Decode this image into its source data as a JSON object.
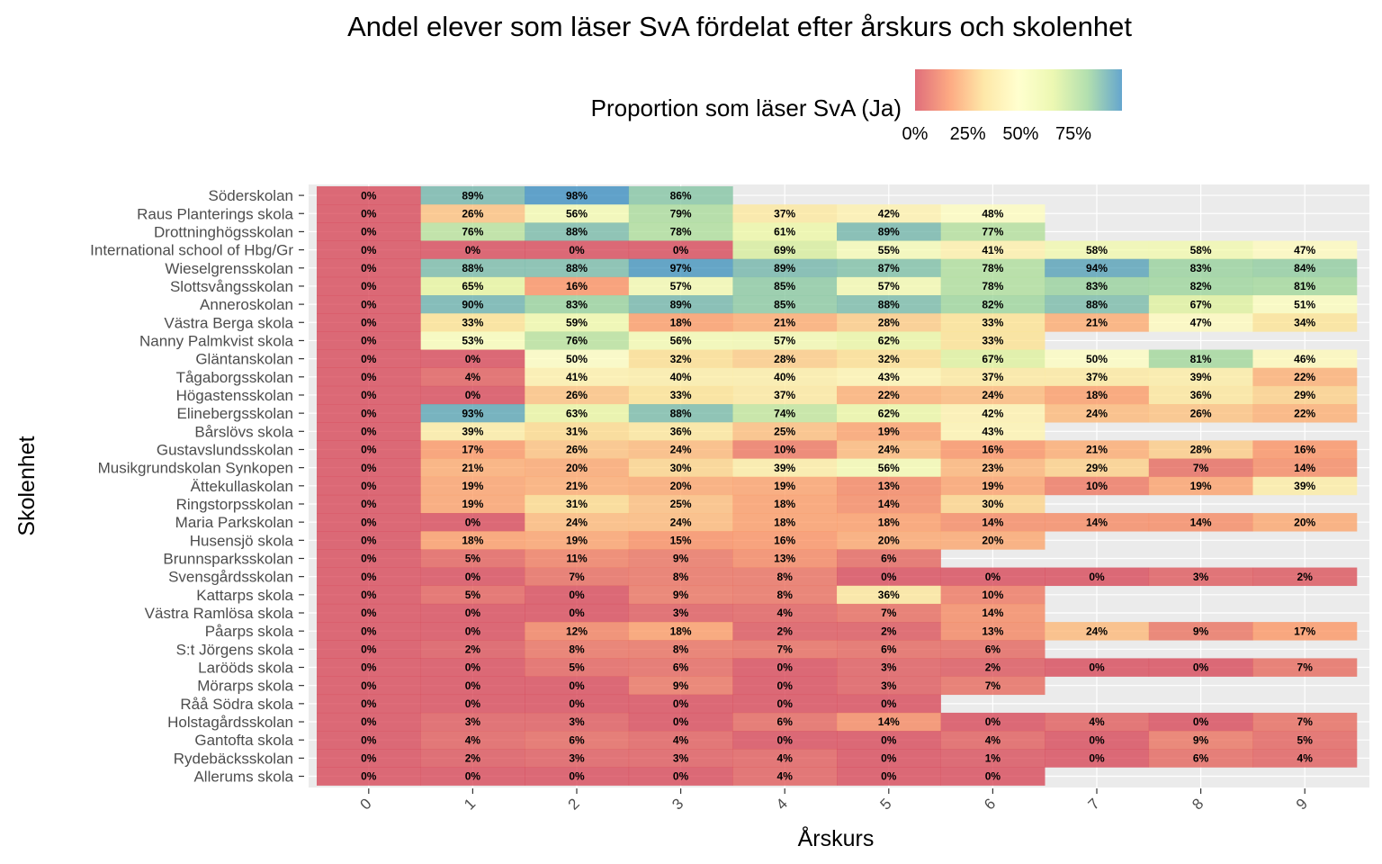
{
  "chart_data": {
    "type": "heatmap",
    "title": "Andel elever som läser SvA fördelat efter årskurs och skolenhet",
    "xlabel": "Årskurs",
    "ylabel": "Skolenhet",
    "legend": {
      "title": "Proportion som läser SvA (Ja)",
      "position": "top",
      "ticks": [
        "0%",
        "25%",
        "50%",
        "75%"
      ],
      "tick_values": [
        0,
        25,
        50,
        75
      ],
      "range": [
        0,
        98
      ],
      "colors": [
        "#d53e4f",
        "#fc8d59",
        "#fee08b",
        "#ffffbf",
        "#e6f598",
        "#99d594",
        "#3288bd"
      ]
    },
    "grid": true,
    "x": [
      "0",
      "1",
      "2",
      "3",
      "4",
      "5",
      "6",
      "7",
      "8",
      "9"
    ],
    "y": [
      "Söderskolan",
      "Raus Planterings skola",
      "Drottninghögsskolan",
      "International school of Hbg/Gr",
      "Wieselgrensskolan",
      "Slottsvångsskolan",
      "Anneroskolan",
      "Västra Berga skola",
      "Nanny Palmkvist skola",
      "Gläntanskolan",
      "Tågaborgsskolan",
      "Högastensskolan",
      "Elinebergsskolan",
      "Bårslövs skola",
      "Gustavslundsskolan",
      "Musikgrundskolan Synkopen",
      "Ättekullaskolan",
      "Ringstorpsskolan",
      "Maria Parkskolan",
      "Husensjö skola",
      "Brunnsparksskolan",
      "Svensgårdsskolan",
      "Kattarps skola",
      "Västra Ramlösa skola",
      "Påarps skola",
      "S:t Jörgens skola",
      "Larööds skola",
      "Mörarps skola",
      "Råå Södra skola",
      "Holstagårdsskolan",
      "Gantofta skola",
      "Rydebäcksskolan",
      "Allerums skola"
    ],
    "values": [
      [
        0,
        89,
        98,
        86,
        null,
        null,
        null,
        null,
        null,
        null
      ],
      [
        0,
        26,
        56,
        79,
        37,
        42,
        48,
        null,
        null,
        null
      ],
      [
        0,
        76,
        88,
        78,
        61,
        89,
        77,
        null,
        null,
        null
      ],
      [
        0,
        0,
        0,
        0,
        69,
        55,
        41,
        58,
        58,
        47
      ],
      [
        0,
        88,
        88,
        97,
        89,
        87,
        78,
        94,
        83,
        84
      ],
      [
        0,
        65,
        16,
        57,
        85,
        57,
        78,
        83,
        82,
        81
      ],
      [
        0,
        90,
        83,
        89,
        85,
        88,
        82,
        88,
        67,
        51
      ],
      [
        0,
        33,
        59,
        18,
        21,
        28,
        33,
        21,
        47,
        34
      ],
      [
        0,
        53,
        76,
        56,
        57,
        62,
        33,
        null,
        null,
        null
      ],
      [
        0,
        0,
        50,
        32,
        28,
        32,
        67,
        50,
        81,
        46
      ],
      [
        0,
        4,
        41,
        40,
        40,
        43,
        37,
        37,
        39,
        22
      ],
      [
        0,
        0,
        26,
        33,
        37,
        22,
        24,
        18,
        36,
        29
      ],
      [
        0,
        93,
        63,
        88,
        74,
        62,
        42,
        24,
        26,
        22
      ],
      [
        0,
        39,
        31,
        36,
        25,
        19,
        43,
        null,
        null,
        null
      ],
      [
        0,
        17,
        26,
        24,
        10,
        24,
        16,
        21,
        28,
        16
      ],
      [
        0,
        21,
        20,
        30,
        39,
        56,
        23,
        29,
        7,
        14
      ],
      [
        0,
        19,
        21,
        20,
        19,
        13,
        19,
        10,
        19,
        39
      ],
      [
        0,
        19,
        31,
        25,
        18,
        14,
        30,
        null,
        null,
        null
      ],
      [
        0,
        0,
        24,
        24,
        18,
        18,
        14,
        14,
        14,
        20
      ],
      [
        0,
        18,
        19,
        15,
        16,
        20,
        20,
        null,
        null,
        null
      ],
      [
        0,
        5,
        11,
        9,
        13,
        6,
        null,
        null,
        null,
        null
      ],
      [
        0,
        0,
        7,
        8,
        8,
        0,
        0,
        0,
        3,
        2
      ],
      [
        0,
        5,
        0,
        9,
        8,
        36,
        10,
        null,
        null,
        null
      ],
      [
        0,
        0,
        0,
        3,
        4,
        7,
        14,
        null,
        null,
        null
      ],
      [
        0,
        0,
        12,
        18,
        2,
        2,
        13,
        24,
        9,
        17
      ],
      [
        0,
        2,
        8,
        8,
        7,
        6,
        6,
        null,
        null,
        null
      ],
      [
        0,
        0,
        5,
        6,
        0,
        3,
        2,
        0,
        0,
        7
      ],
      [
        0,
        0,
        0,
        9,
        0,
        3,
        7,
        null,
        null,
        null
      ],
      [
        0,
        0,
        0,
        0,
        0,
        0,
        null,
        null,
        null,
        null
      ],
      [
        0,
        3,
        3,
        0,
        6,
        14,
        0,
        4,
        0,
        7
      ],
      [
        0,
        4,
        6,
        4,
        0,
        0,
        4,
        0,
        9,
        5
      ],
      [
        0,
        2,
        3,
        3,
        4,
        0,
        1,
        0,
        6,
        4
      ],
      [
        0,
        0,
        0,
        0,
        4,
        0,
        0,
        null,
        null,
        null
      ]
    ],
    "value_suffix": "%"
  }
}
